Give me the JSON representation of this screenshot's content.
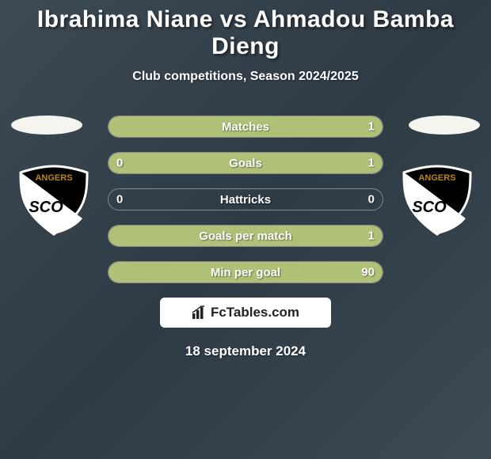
{
  "background": {
    "gradient_colors": [
      "#3d4a54",
      "#2e3a44",
      "#3d4a54"
    ],
    "angle_deg": 135
  },
  "title": {
    "text": "Ibrahima Niane vs Ahmadou Bamba Dieng",
    "fontsize": 30,
    "color": "#ffffff"
  },
  "subtitle": {
    "text": "Club competitions, Season 2024/2025",
    "fontsize": 16,
    "color": "#ffffff"
  },
  "disc_color": "#f5f5f0",
  "badge": {
    "shield_fill": "#000000",
    "shield_stroke": "#ffffff",
    "diagonal_fill": "#ffffff",
    "text_top": "ANGERS",
    "text_bottom": "SCO",
    "text_color_top": "#b8860b",
    "text_color_bottom": "#000000"
  },
  "stats": {
    "row_border_color": "#888888",
    "fill_left_color": "#afc077",
    "fill_right_color": "#afc077",
    "label_color": "#ffffff",
    "value_color": "#ffffff",
    "label_fontsize": 15,
    "value_fontsize": 15,
    "rows": [
      {
        "label": "Matches",
        "left": "",
        "right": "1",
        "left_pct": 0,
        "right_pct": 100,
        "full": true
      },
      {
        "label": "Goals",
        "left": "0",
        "right": "1",
        "left_pct": 0,
        "right_pct": 100,
        "full": true
      },
      {
        "label": "Hattricks",
        "left": "0",
        "right": "0",
        "left_pct": 0,
        "right_pct": 0,
        "full": false
      },
      {
        "label": "Goals per match",
        "left": "",
        "right": "1",
        "left_pct": 0,
        "right_pct": 100,
        "full": true
      },
      {
        "label": "Min per goal",
        "left": "",
        "right": "90",
        "left_pct": 0,
        "right_pct": 100,
        "full": true
      }
    ]
  },
  "brand": {
    "pill_bg": "#ffffff",
    "icon_name": "bar-chart-icon",
    "text": "FcTables.com",
    "text_color": "#222222"
  },
  "date": {
    "text": "18 september 2024",
    "color": "#ffffff",
    "fontsize": 17
  }
}
